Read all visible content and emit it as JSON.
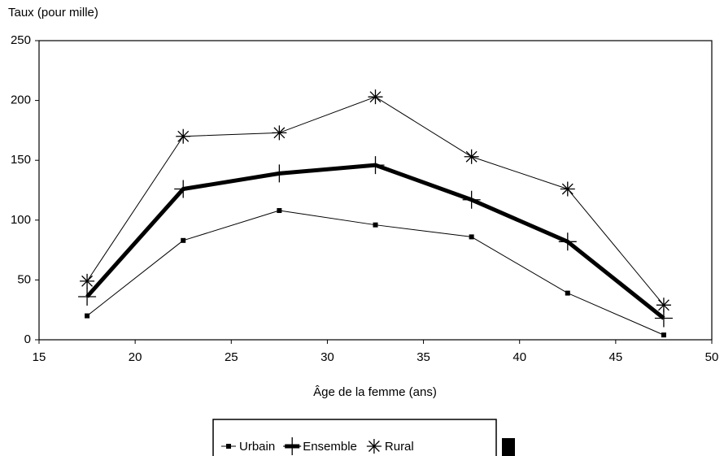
{
  "chart_data": {
    "type": "line",
    "y_label": "Taux (pour mille)",
    "x_label": "Âge de la femme (ans)",
    "xlim": [
      15,
      50
    ],
    "xticks": [
      15,
      20,
      25,
      30,
      35,
      40,
      45,
      50
    ],
    "ylim": [
      0,
      250
    ],
    "yticks": [
      0,
      50,
      100,
      150,
      200,
      250
    ],
    "x": [
      17.5,
      22.5,
      27.5,
      32.5,
      37.5,
      42.5,
      47.5
    ],
    "series": [
      {
        "name": "Urbain",
        "color": "#000000",
        "marker": "square",
        "line_width": 1,
        "values": [
          20,
          83,
          108,
          96,
          86,
          39,
          4
        ]
      },
      {
        "name": "Ensemble",
        "color": "#000000",
        "marker": "plus",
        "line_width": 5,
        "values": [
          36,
          126,
          139,
          146,
          117,
          82,
          18
        ]
      },
      {
        "name": "Rural",
        "color": "#000000",
        "marker": "star",
        "line_width": 1,
        "values": [
          49,
          170,
          173,
          203,
          153,
          126,
          29
        ]
      }
    ]
  }
}
